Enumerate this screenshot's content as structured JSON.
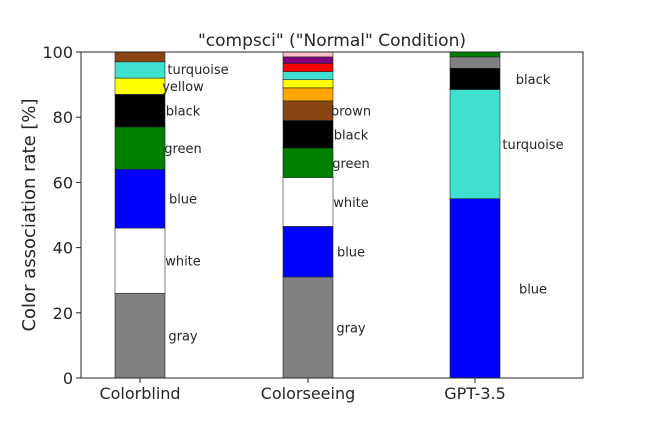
{
  "chart_data": {
    "type": "bar",
    "stacked": true,
    "title": "\"compsci\" (\"Normal\" Condition)",
    "xlabel": "",
    "ylabel": "Color association rate [%]",
    "ylim": [
      0,
      100
    ],
    "yticks": [
      "0",
      "20",
      "40",
      "60",
      "80",
      "100"
    ],
    "grid": false,
    "categories": [
      "Colorblind",
      "Colorseeing",
      "GPT-3.5"
    ],
    "stacks": [
      {
        "category": "Colorblind",
        "segments": [
          {
            "name": "gray",
            "value": 26,
            "color": "#808080",
            "label": "gray"
          },
          {
            "name": "white",
            "value": 20,
            "color": "#ffffff",
            "label": "white"
          },
          {
            "name": "blue",
            "value": 18,
            "color": "#0000ff",
            "label": "blue"
          },
          {
            "name": "green",
            "value": 13,
            "color": "#008000",
            "label": "green"
          },
          {
            "name": "black",
            "value": 10,
            "color": "#000000",
            "label": "black"
          },
          {
            "name": "yellow",
            "value": 5,
            "color": "#ffff00",
            "label": "yellow"
          },
          {
            "name": "turquoise",
            "value": 5,
            "color": "#40e0d0",
            "label": "turquoise"
          },
          {
            "name": "brown",
            "value": 3,
            "color": "#8b4513",
            "label": ""
          }
        ]
      },
      {
        "category": "Colorseeing",
        "segments": [
          {
            "name": "gray",
            "value": 31,
            "color": "#808080",
            "label": "gray"
          },
          {
            "name": "blue",
            "value": 15.5,
            "color": "#0000ff",
            "label": "blue"
          },
          {
            "name": "white",
            "value": 15,
            "color": "#ffffff",
            "label": "white"
          },
          {
            "name": "green",
            "value": 9,
            "color": "#008000",
            "label": "green"
          },
          {
            "name": "black",
            "value": 8.5,
            "color": "#000000",
            "label": "black"
          },
          {
            "name": "brown",
            "value": 6,
            "color": "#8b4513",
            "label": "brown"
          },
          {
            "name": "orange",
            "value": 4,
            "color": "#ffa500",
            "label": ""
          },
          {
            "name": "yellow",
            "value": 2.5,
            "color": "#ffff00",
            "label": ""
          },
          {
            "name": "turquoise",
            "value": 2.5,
            "color": "#40e0d0",
            "label": ""
          },
          {
            "name": "red",
            "value": 2.5,
            "color": "#ff0000",
            "label": ""
          },
          {
            "name": "purple",
            "value": 2,
            "color": "#800080",
            "label": ""
          },
          {
            "name": "pink",
            "value": 1.5,
            "color": "#ffc0cb",
            "label": ""
          }
        ]
      },
      {
        "category": "GPT-3.5",
        "segments": [
          {
            "name": "blue",
            "value": 55,
            "color": "#0000ff",
            "label": "blue"
          },
          {
            "name": "turquoise",
            "value": 33.5,
            "color": "#40e0d0",
            "label": "turquoise"
          },
          {
            "name": "black",
            "value": 6.5,
            "color": "#000000",
            "label": "black"
          },
          {
            "name": "gray",
            "value": 3.5,
            "color": "#808080",
            "label": ""
          },
          {
            "name": "green",
            "value": 1.5,
            "color": "#008000",
            "label": ""
          }
        ]
      }
    ]
  }
}
